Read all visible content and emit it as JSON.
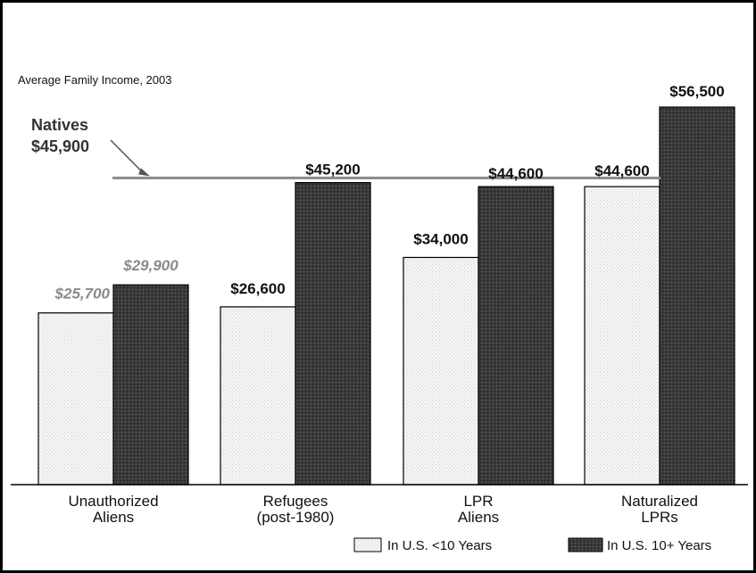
{
  "chart_data": {
    "type": "bar",
    "subtitle": "Average Family Income, 2003",
    "categories": [
      [
        "Unauthorized",
        "Aliens"
      ],
      [
        "Refugees",
        "(post-1980)"
      ],
      [
        "LPR",
        "Aliens"
      ],
      [
        "Naturalized",
        "LPRs"
      ]
    ],
    "series": [
      {
        "name": "In U.S. <10 Years",
        "values": [
          25700,
          26600,
          34000,
          44600
        ],
        "labels": [
          "$25,700",
          "$26,600",
          "$34,000",
          "$44,600"
        ],
        "color": "#f2f2f2"
      },
      {
        "name": "In U.S. 10+ Years",
        "values": [
          29900,
          45200,
          44600,
          56500
        ],
        "labels": [
          "$29,900",
          "$45,200",
          "$44,600",
          "$56,500"
        ],
        "color": "#3a3a3a"
      }
    ],
    "reference_line": {
      "label_line1": "Natives",
      "label_line2": "$45,900",
      "value": 45900
    },
    "ylim": [
      0,
      56500
    ],
    "grid": false,
    "legend_position": "bottom-right",
    "highlight_color": "#8a8a8a"
  }
}
